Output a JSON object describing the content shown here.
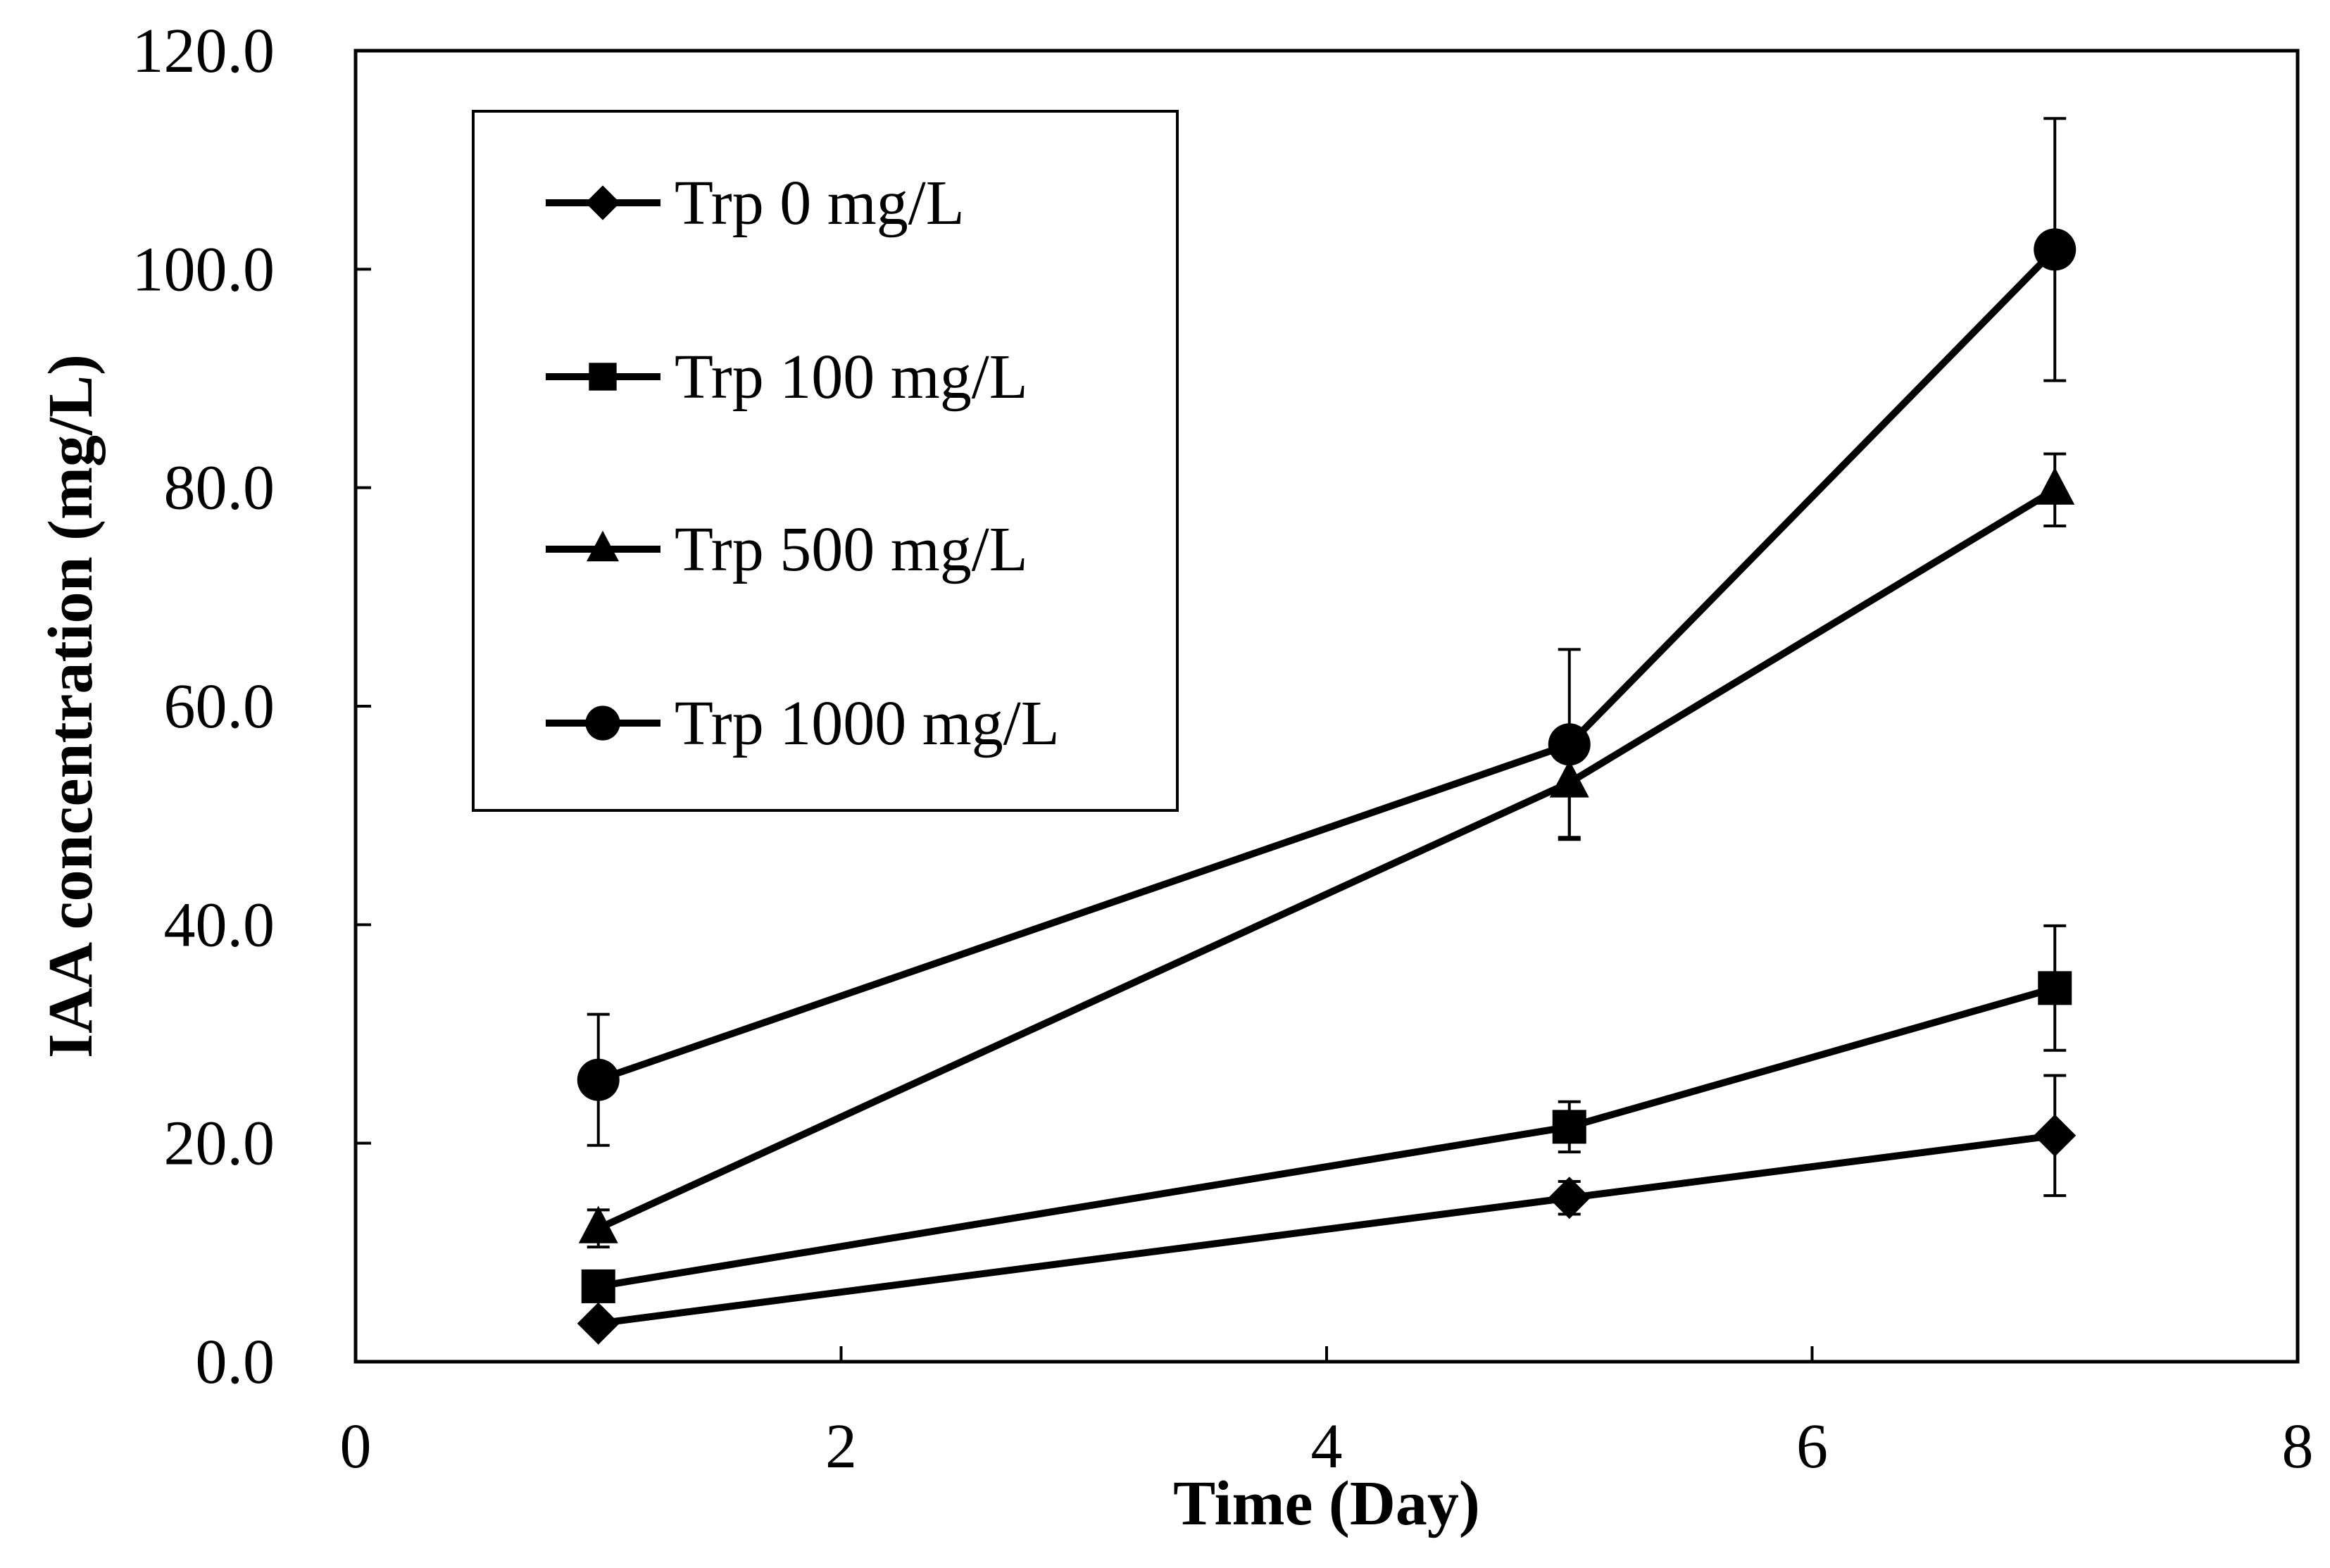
{
  "chart_data": {
    "type": "line",
    "title": "",
    "xlabel": "Time (Day)",
    "ylabel": "IAA concentration (mg/L)",
    "xlim": [
      0,
      8
    ],
    "ylim": [
      0,
      120
    ],
    "xticks": [
      0,
      2,
      4,
      6,
      8
    ],
    "yticks": [
      0,
      20,
      40,
      60,
      80,
      100,
      120
    ],
    "xtick_labels": [
      "0",
      "2",
      "4",
      "6",
      "8"
    ],
    "ytick_labels": [
      "0.0",
      "20.0",
      "40.0",
      "60.0",
      "80.0",
      "100.0",
      "120.0"
    ],
    "grid": false,
    "legend_position": "top-left",
    "x": [
      1,
      5,
      7
    ],
    "series": [
      {
        "name": "Trp 0 mg/L",
        "marker": "diamond",
        "values": [
          3.5,
          15.0,
          20.7
        ],
        "errors": [
          0.8,
          1.5,
          5.5
        ]
      },
      {
        "name": "Trp 100 mg/L",
        "marker": "square",
        "values": [
          6.9,
          21.5,
          34.2
        ],
        "errors": [
          0.8,
          2.3,
          5.7
        ]
      },
      {
        "name": "Trp 500 mg/L",
        "marker": "triangle",
        "values": [
          12.2,
          53.0,
          79.8
        ],
        "errors": [
          1.7,
          5.0,
          3.3
        ]
      },
      {
        "name": "Trp 1000 mg/L",
        "marker": "circle",
        "values": [
          25.8,
          56.5,
          101.8
        ],
        "errors": [
          6.0,
          8.7,
          12.0
        ]
      }
    ],
    "colors": {
      "line": "#000000",
      "background": "#ffffff"
    }
  }
}
